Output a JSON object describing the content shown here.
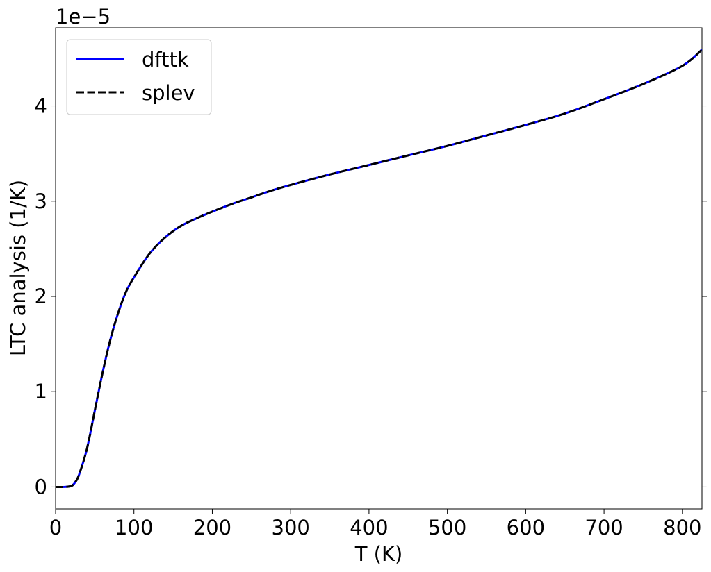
{
  "chart_data": {
    "type": "line",
    "title": "",
    "xlabel": "T (K)",
    "ylabel": "LTC analysis (1/K)",
    "offset_label": "1e−5",
    "y_multiplier": 1e-05,
    "xlim": [
      0,
      825
    ],
    "ylim": [
      -0.23,
      4.82
    ],
    "xticks": [
      0,
      100,
      200,
      300,
      400,
      500,
      600,
      700,
      800
    ],
    "yticks": [
      0,
      1,
      2,
      3,
      4
    ],
    "grid": false,
    "legend_position": "upper-left",
    "x": [
      0,
      10,
      20,
      25,
      30,
      40,
      50,
      60,
      70,
      80,
      90,
      100,
      120,
      140,
      160,
      180,
      200,
      225,
      250,
      275,
      300,
      350,
      400,
      450,
      500,
      550,
      600,
      650,
      700,
      750,
      800,
      825
    ],
    "series": [
      {
        "name": "dfttk",
        "color": "#0000ff",
        "style": "solid",
        "values": [
          0.0,
          0.0,
          0.01,
          0.05,
          0.13,
          0.4,
          0.8,
          1.2,
          1.55,
          1.83,
          2.05,
          2.2,
          2.45,
          2.62,
          2.74,
          2.82,
          2.89,
          2.97,
          3.04,
          3.11,
          3.17,
          3.28,
          3.38,
          3.48,
          3.58,
          3.69,
          3.8,
          3.92,
          4.07,
          4.23,
          4.42,
          4.59
        ]
      },
      {
        "name": "splev",
        "color": "#000000",
        "style": "dashed",
        "values": [
          0.0,
          0.0,
          0.01,
          0.05,
          0.13,
          0.4,
          0.8,
          1.2,
          1.55,
          1.83,
          2.05,
          2.2,
          2.45,
          2.62,
          2.74,
          2.82,
          2.89,
          2.97,
          3.04,
          3.11,
          3.17,
          3.28,
          3.38,
          3.48,
          3.58,
          3.69,
          3.8,
          3.92,
          4.07,
          4.23,
          4.42,
          4.59
        ]
      }
    ]
  }
}
